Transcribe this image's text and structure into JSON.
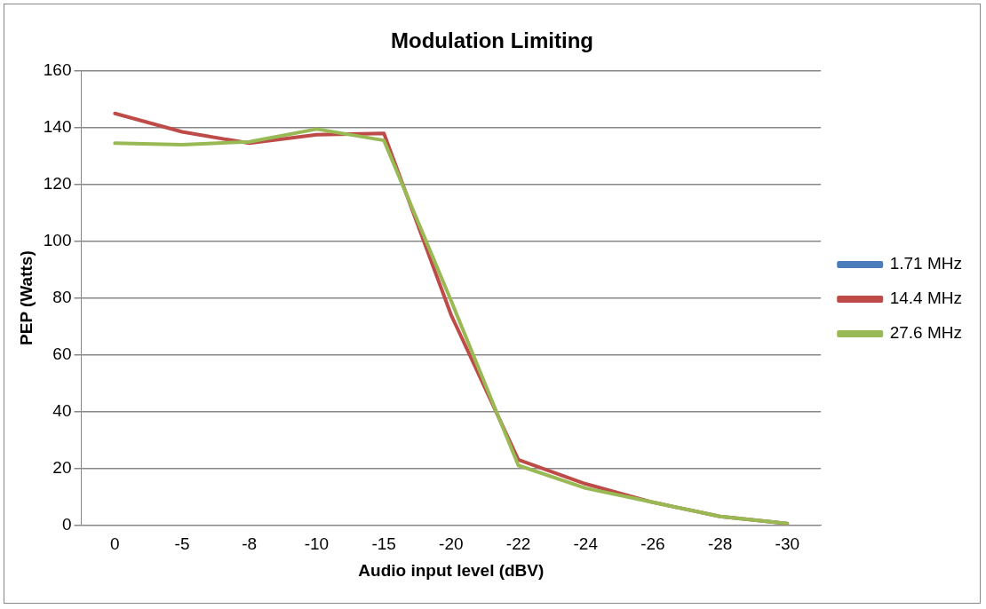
{
  "chart_data": {
    "type": "line",
    "title": "Modulation Limiting",
    "xlabel": "Audio input level (dBV)",
    "ylabel": "PEP (Watts)",
    "categories": [
      "0",
      "-5",
      "-8",
      "-10",
      "-15",
      "-20",
      "-22",
      "-24",
      "-26",
      "-28",
      "-30"
    ],
    "series": [
      {
        "name": "1.71 MHz",
        "color": "#4a7ebb",
        "values": [
          null,
          null,
          null,
          null,
          null,
          null,
          null,
          null,
          null,
          null,
          null
        ]
      },
      {
        "name": "14.4 MHz",
        "color": "#be4b48",
        "values": [
          145,
          138.5,
          134.5,
          137.5,
          138,
          74,
          23,
          14.5,
          8,
          3,
          0.5
        ]
      },
      {
        "name": "27.6 MHz",
        "color": "#98b954",
        "values": [
          134.5,
          134,
          135,
          139.5,
          135.5,
          79,
          21,
          13,
          8,
          3,
          0.5
        ]
      }
    ],
    "ylim": [
      0,
      160
    ],
    "yticks": [
      0,
      20,
      40,
      60,
      80,
      100,
      120,
      140,
      160
    ],
    "grid": "y",
    "legend": "right",
    "marker": "none",
    "line_style": "solid"
  }
}
